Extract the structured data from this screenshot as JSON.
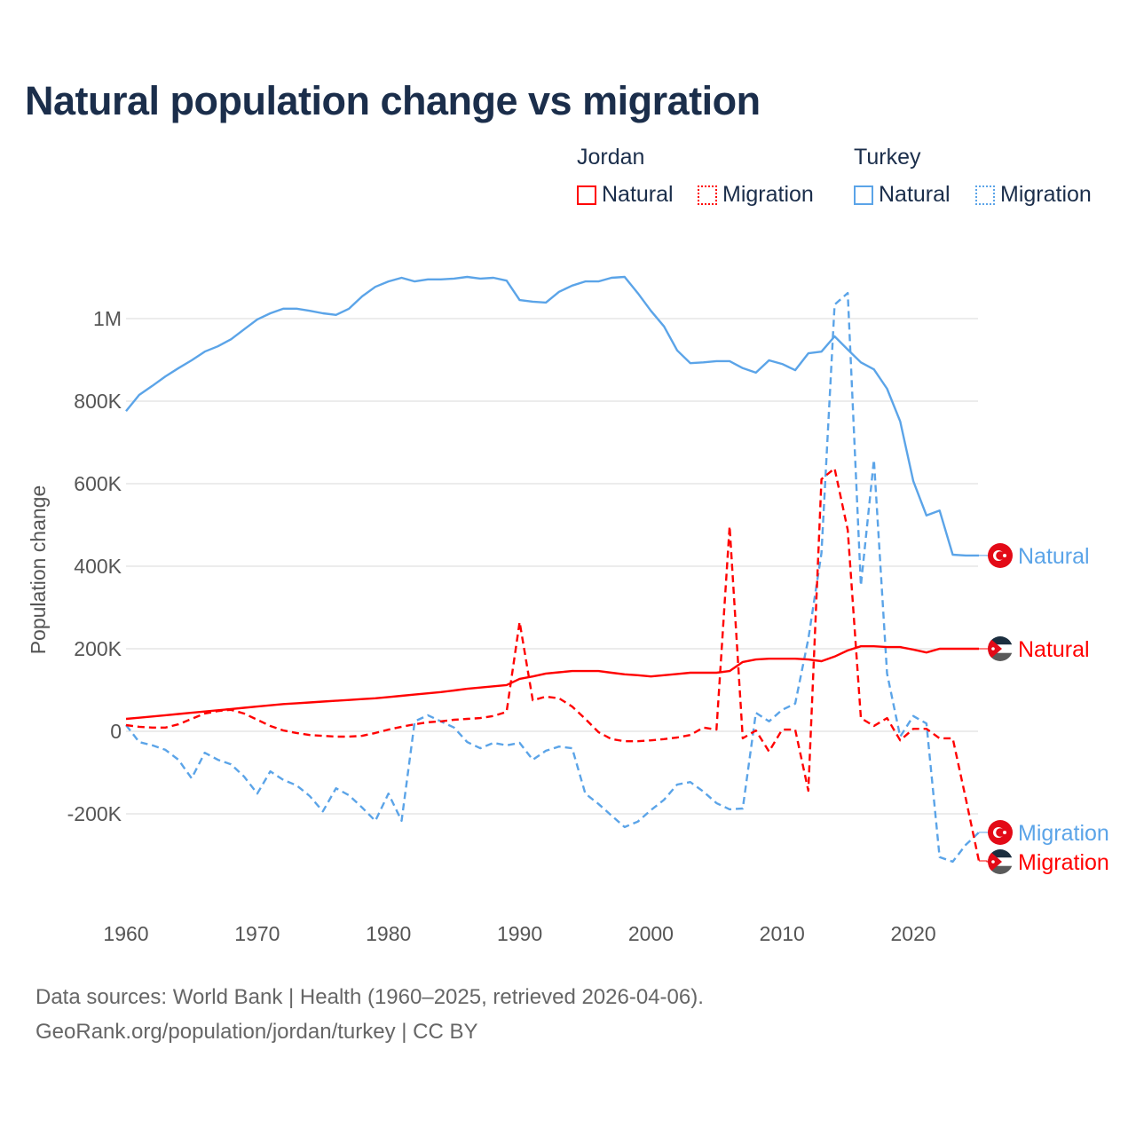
{
  "title": "Natural population change vs migration",
  "legend": {
    "groups": [
      {
        "name": "Jordan",
        "items": [
          {
            "label": "Natural",
            "style": "solid"
          },
          {
            "label": "Migration",
            "style": "dotted"
          }
        ],
        "color": "#ff0000"
      },
      {
        "name": "Turkey",
        "items": [
          {
            "label": "Natural",
            "style": "solid"
          },
          {
            "label": "Migration",
            "style": "dotted"
          }
        ],
        "color": "#5ba4e8"
      }
    ]
  },
  "footer": {
    "line1": "Data sources: World Bank | Health (1960–2025, retrieved 2026-04-06).",
    "line2": "GeoRank.org/population/jordan/turkey | CC BY"
  },
  "chart_data": {
    "type": "line",
    "title": "Natural population change vs migration",
    "xlabel": "",
    "ylabel": "Population change",
    "xlim": [
      1960,
      2025
    ],
    "ylim": [
      -330000,
      1150000
    ],
    "x_ticks": [
      1960,
      1970,
      1980,
      1990,
      2000,
      2010,
      2020
    ],
    "x_tick_labels": [
      "1960",
      "1970",
      "1980",
      "1990",
      "2000",
      "2010",
      "2020"
    ],
    "y_ticks": [
      -200000,
      0,
      200000,
      400000,
      600000,
      800000,
      1000000
    ],
    "y_tick_labels": [
      "-200K",
      "0",
      "200K",
      "400K",
      "600K",
      "800K",
      "1M"
    ],
    "grid": true,
    "legend_position": "top-right",
    "x_start": 1960,
    "series": [
      {
        "name": "Turkey Natural",
        "country": "Turkey",
        "end_label": "Natural",
        "color": "#5ba4e8",
        "dash": "solid",
        "values": [
          776000,
          815000,
          837000,
          860000,
          880000,
          899000,
          920000,
          933000,
          950000,
          974000,
          998000,
          1013000,
          1024000,
          1024000,
          1019000,
          1013000,
          1009000,
          1024000,
          1054000,
          1077000,
          1090000,
          1099000,
          1090000,
          1095000,
          1095000,
          1097000,
          1101000,
          1097000,
          1099000,
          1092000,
          1045000,
          1041000,
          1039000,
          1065000,
          1080000,
          1090000,
          1090000,
          1099000,
          1101000,
          1062000,
          1019000,
          981000,
          923000,
          892000,
          894000,
          897000,
          897000,
          880000,
          869000,
          899000,
          890000,
          875000,
          916000,
          920000,
          957000,
          925000,
          894000,
          877000,
          830000,
          751000,
          606000,
          523000,
          535000,
          428000,
          426000,
          426000
        ]
      },
      {
        "name": "Turkey Migration",
        "country": "Turkey",
        "end_label": "Migration",
        "color": "#5ba4e8",
        "dash": "dashed",
        "values": [
          15000,
          -26000,
          -34000,
          -45000,
          -69000,
          -114000,
          -52000,
          -69000,
          -80000,
          -110000,
          -151000,
          -97000,
          -118000,
          -131000,
          -157000,
          -194000,
          -138000,
          -155000,
          -185000,
          -217000,
          -151000,
          -217000,
          24000,
          39000,
          24000,
          9000,
          -26000,
          -41000,
          -28000,
          -34000,
          -28000,
          -69000,
          -47000,
          -37000,
          -41000,
          -151000,
          -176000,
          -204000,
          -232000,
          -219000,
          -191000,
          -166000,
          -129000,
          -123000,
          -146000,
          -174000,
          -189000,
          -187000,
          45000,
          24000,
          52000,
          67000,
          224000,
          432000,
          1034000,
          1062000,
          353000,
          658000,
          140000,
          -13000,
          37000,
          19000,
          -305000,
          -316000,
          -275000,
          -245000
        ]
      },
      {
        "name": "Jordan Natural",
        "country": "Jordan",
        "end_label": "Natural",
        "color": "#ff0000",
        "dash": "solid",
        "values": [
          30000,
          33000,
          36000,
          39000,
          42000,
          45000,
          48000,
          51000,
          54000,
          57000,
          60000,
          63000,
          66000,
          68000,
          70000,
          72000,
          74000,
          76000,
          78000,
          80000,
          83000,
          86000,
          89000,
          92000,
          95000,
          99000,
          103000,
          106000,
          109000,
          112000,
          127000,
          133000,
          140000,
          143000,
          146000,
          146000,
          146000,
          142000,
          138000,
          136000,
          133000,
          136000,
          139000,
          142000,
          142000,
          142000,
          146000,
          168000,
          174000,
          176000,
          176000,
          176000,
          174000,
          170000,
          181000,
          196000,
          206000,
          206000,
          204000,
          204000,
          198000,
          191000,
          200000,
          200000,
          200000,
          200000
        ]
      },
      {
        "name": "Jordan Migration",
        "country": "Jordan",
        "end_label": "Migration",
        "color": "#ff0000",
        "dash": "dashed",
        "values": [
          15000,
          11000,
          9000,
          9000,
          17000,
          30000,
          43000,
          49000,
          52000,
          43000,
          28000,
          13000,
          2000,
          -4000,
          -9000,
          -11000,
          -13000,
          -13000,
          -11000,
          -4000,
          4000,
          11000,
          17000,
          22000,
          24000,
          28000,
          30000,
          32000,
          37000,
          47000,
          265000,
          75000,
          84000,
          80000,
          60000,
          30000,
          -2000,
          -19000,
          -24000,
          -24000,
          -22000,
          -19000,
          -15000,
          -9000,
          9000,
          4000,
          497000,
          -17000,
          2000,
          -49000,
          4000,
          4000,
          -144000,
          611000,
          637000,
          488000,
          32000,
          13000,
          32000,
          -22000,
          6000,
          6000,
          -17000,
          -17000,
          -163000,
          -314000
        ]
      }
    ]
  }
}
